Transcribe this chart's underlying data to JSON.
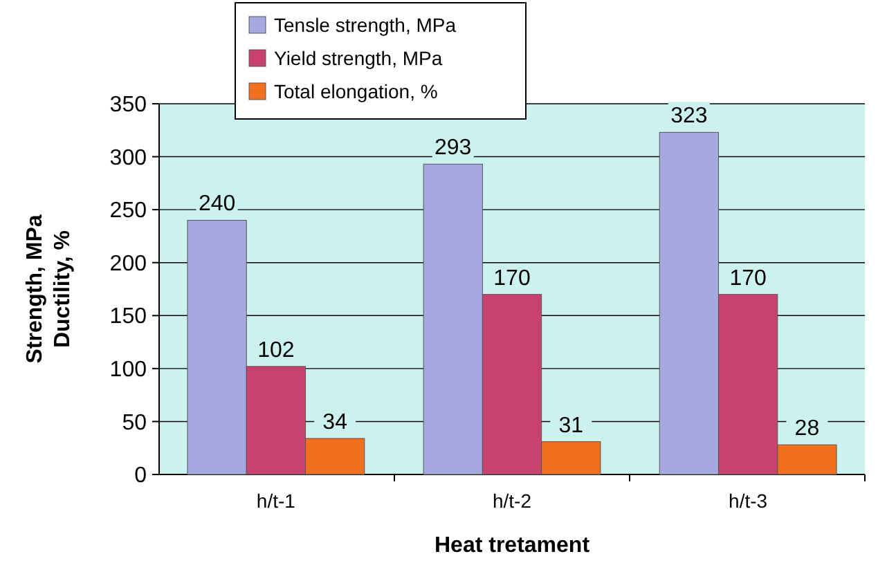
{
  "chart_data": {
    "type": "bar",
    "categories": [
      "h/t-1",
      "h/t-2",
      "h/t-3"
    ],
    "series": [
      {
        "name": "Tensle strength, MPa",
        "color": "#a6a8e0",
        "values": [
          240,
          293,
          323
        ]
      },
      {
        "name": "Yield strength, MPa",
        "color": "#c8426e",
        "values": [
          102,
          170,
          170
        ]
      },
      {
        "name": "Total elongation, %",
        "color": "#f0701e",
        "values": [
          34,
          31,
          28
        ]
      }
    ],
    "xlabel": "Heat tretament",
    "ylabel": "Strength, MPa\nDuctility, %",
    "ylim": [
      0,
      350
    ],
    "yticks": [
      0,
      50,
      100,
      150,
      200,
      250,
      300,
      350
    ],
    "grid": "y",
    "legend": "top left",
    "data_labels": true
  }
}
